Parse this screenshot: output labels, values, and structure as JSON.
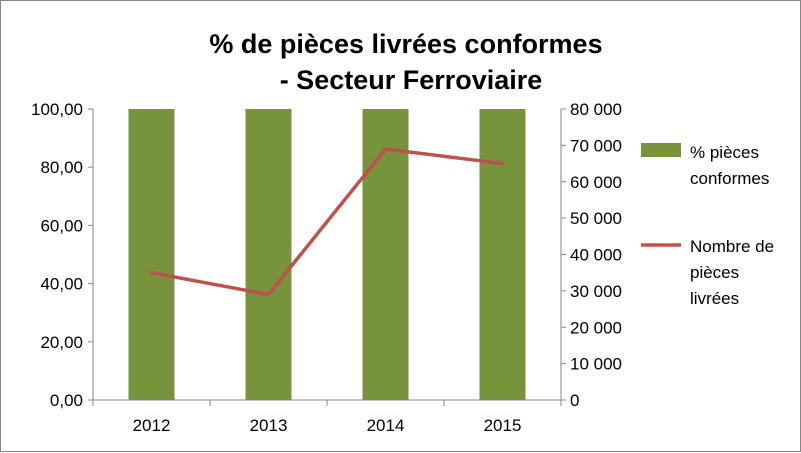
{
  "chart_data": {
    "type": "bar",
    "title_lines": [
      "% de pièces livrées conformes",
      "- Secteur Ferroviaire"
    ],
    "categories": [
      "2012",
      "2013",
      "2014",
      "2015"
    ],
    "series": [
      {
        "name": "% pièces conformes",
        "name_lines": [
          "% pièces",
          "conformes"
        ],
        "type": "bar",
        "axis": "left",
        "color": "#77933c",
        "values": [
          100,
          100,
          100,
          100
        ]
      },
      {
        "name": "Nombre de pièces livrées",
        "name_lines": [
          "Nombre de",
          "pièces",
          "livrées"
        ],
        "type": "line",
        "axis": "right",
        "color": "#c0504d",
        "values": [
          35000,
          29000,
          69000,
          65000
        ]
      }
    ],
    "y_left": {
      "ylim": [
        0,
        100
      ],
      "tick_labels": [
        "0,00",
        "20,00",
        "40,00",
        "60,00",
        "80,00",
        "100,00"
      ]
    },
    "y_right": {
      "ylim": [
        0,
        80000
      ],
      "tick_labels": [
        "0",
        "10 000",
        "20 000",
        "30 000",
        "40 000",
        "50 000",
        "60 000",
        "70 000",
        "80 000"
      ]
    },
    "grid": false,
    "legend_position": "right"
  }
}
